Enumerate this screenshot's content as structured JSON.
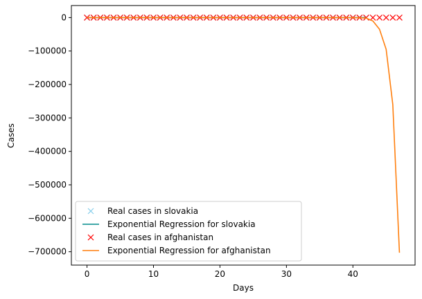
{
  "chart_data": {
    "type": "line",
    "xlabel": "Days",
    "ylabel": "Cases",
    "xlim": [
      -2.35,
      49.35
    ],
    "ylim": [
      -740000,
      36000
    ],
    "x_ticks": [
      0,
      10,
      20,
      30,
      40
    ],
    "y_ticks": [
      0,
      -100000,
      -200000,
      -300000,
      -400000,
      -500000,
      -600000,
      -700000
    ],
    "x_tick_labels": [
      "0",
      "10",
      "20",
      "30",
      "40"
    ],
    "y_tick_labels": [
      "0",
      "−100000",
      "−200000",
      "−300000",
      "−400000",
      "−500000",
      "−600000",
      "−700000"
    ],
    "grid": false,
    "legend_position": "lower-left",
    "series": [
      {
        "name": "Real cases in slovakia",
        "style": "marker-x",
        "color": "#87ceeb",
        "x": [
          0,
          1,
          2,
          3,
          4,
          5,
          6,
          7,
          8,
          9,
          10,
          11,
          12,
          13,
          14,
          15,
          16,
          17,
          18,
          19,
          20,
          21,
          22,
          23,
          24,
          25,
          26,
          27,
          28,
          29,
          30,
          31,
          32,
          33,
          34,
          35,
          36,
          37,
          38,
          39,
          40,
          41,
          42
        ],
        "y": [
          0,
          0,
          0,
          0,
          0,
          0,
          0,
          0,
          0,
          0,
          0,
          0,
          0,
          0,
          0,
          0,
          0,
          0,
          0,
          0,
          0,
          0,
          0,
          0,
          0,
          0,
          0,
          0,
          0,
          0,
          0,
          0,
          0,
          0,
          0,
          0,
          0,
          0,
          0,
          0,
          0,
          0,
          0
        ]
      },
      {
        "name": "Exponential Regression for slovakia",
        "style": "line",
        "color": "#008b8b",
        "x": [
          0,
          1,
          2,
          3,
          4,
          5,
          6,
          7,
          8,
          9,
          10,
          11,
          12,
          13,
          14,
          15,
          16,
          17,
          18,
          19,
          20,
          21,
          22,
          23,
          24,
          25,
          26,
          27,
          28,
          29,
          30,
          31,
          32,
          33,
          34,
          35,
          36,
          37,
          38,
          39,
          40,
          41,
          42
        ],
        "y": [
          0,
          0,
          0,
          0,
          0,
          0,
          0,
          0,
          0,
          0,
          0,
          0,
          0,
          0,
          0,
          0,
          0,
          0,
          0,
          0,
          0,
          0,
          0,
          0,
          0,
          0,
          0,
          0,
          0,
          0,
          0,
          0,
          0,
          0,
          0,
          0,
          0,
          0,
          0,
          0,
          0,
          0,
          0
        ]
      },
      {
        "name": "Real cases in afghanistan",
        "style": "marker-x",
        "color": "#ff0000",
        "x": [
          0,
          1,
          2,
          3,
          4,
          5,
          6,
          7,
          8,
          9,
          10,
          11,
          12,
          13,
          14,
          15,
          16,
          17,
          18,
          19,
          20,
          21,
          22,
          23,
          24,
          25,
          26,
          27,
          28,
          29,
          30,
          31,
          32,
          33,
          34,
          35,
          36,
          37,
          38,
          39,
          40,
          41,
          42,
          43,
          44,
          45,
          46,
          47
        ],
        "y": [
          0,
          0,
          0,
          0,
          0,
          0,
          0,
          0,
          0,
          0,
          0,
          0,
          0,
          0,
          0,
          0,
          0,
          0,
          0,
          0,
          0,
          0,
          0,
          0,
          0,
          0,
          0,
          0,
          0,
          0,
          0,
          0,
          0,
          0,
          0,
          0,
          0,
          0,
          0,
          0,
          0,
          0,
          0,
          0,
          0,
          0,
          0,
          0
        ]
      },
      {
        "name": "Exponential Regression for afghanistan",
        "style": "line",
        "color": "#ff7f0e",
        "x": [
          0,
          10,
          20,
          30,
          38,
          40,
          41,
          42,
          43,
          44,
          45,
          46,
          47
        ],
        "y": [
          0,
          0,
          0,
          0,
          0,
          -200,
          -500,
          -1500,
          -10000,
          -35000,
          -95000,
          -260000,
          -703000
        ]
      }
    ]
  }
}
